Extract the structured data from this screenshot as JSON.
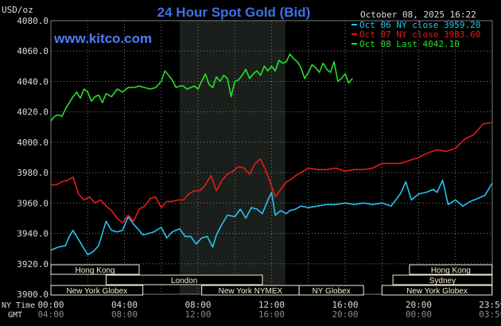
{
  "header": {
    "unit": "USD/oz",
    "title": "24 Hour Spot Gold (Bid)",
    "date": "October 08, 2025 16:22",
    "watermark": "www.kitco.com"
  },
  "colors": {
    "background": "#000000",
    "title": "#3f6fe8",
    "watermark": "#4f7df0",
    "grid": "#7a7a7a",
    "text": "#dcdcdc",
    "nymex_shade": "#1b1f1b",
    "session_fill": "#f2eed7",
    "series_oct06": "#22c4f0",
    "series_oct07": "#e41b1b",
    "series_oct08": "#27de2a"
  },
  "time_axis": {
    "ny_label": "NY Time",
    "gmt_label": "GMT",
    "ny_ticks": [
      "00:00",
      "04:00",
      "08:00",
      "12:00",
      "16:00",
      "20:00",
      "23:59"
    ],
    "gmt_ticks": [
      "04:00",
      "08:00",
      "12:00",
      "16:00",
      "20:00",
      "00:00",
      "03:59"
    ]
  },
  "sessions": [
    {
      "label": "Hong Kong",
      "start": -2,
      "end": 4.8,
      "row": 0
    },
    {
      "label": "London",
      "start": 3,
      "end": 11.5,
      "row": 1
    },
    {
      "label": "New York Globex",
      "start": -1,
      "end": 5,
      "row": 2
    },
    {
      "label": "New York NYMEX",
      "start": 8.2,
      "end": 13.5,
      "row": 2
    },
    {
      "label": "NY Globex",
      "start": 13.5,
      "end": 17,
      "row": 2
    },
    {
      "label": "Hong Kong",
      "start": 19.5,
      "end": 23.99,
      "row": 0
    },
    {
      "label": "Sydney",
      "start": 18.6,
      "end": 23.99,
      "row": 1
    },
    {
      "label": "New York Globex",
      "start": 18,
      "end": 23.99,
      "row": 2
    }
  ],
  "chart_data": {
    "type": "line",
    "title": "24 Hour Spot Gold (Bid)",
    "ylabel": "USD/oz",
    "xlabel": "NY Time",
    "xlim": [
      0,
      24
    ],
    "ylim": [
      3900,
      4080
    ],
    "yticks": [
      "3900.0",
      "3920.0",
      "3940.0",
      "3960.0",
      "3980.0",
      "4000.0",
      "4020.0",
      "4040.0",
      "4060.0",
      "4080.0"
    ],
    "grid": true,
    "legend_position": "top-right",
    "shaded_region": [
      7,
      12.75
    ],
    "series": [
      {
        "name": "Oct 06 NY close 3959.20",
        "x": [
          0,
          0.4,
          0.8,
          1.0,
          1.2,
          1.5,
          1.8,
          2.0,
          2.3,
          2.6,
          3.0,
          3.3,
          3.6,
          3.9,
          4.2,
          4.5,
          4.8,
          5.0,
          5.3,
          5.6,
          6.0,
          6.3,
          6.6,
          7.0,
          7.3,
          7.6,
          7.9,
          8.2,
          8.5,
          8.8,
          9.0,
          9.3,
          9.6,
          10.0,
          10.3,
          10.6,
          10.9,
          11.2,
          11.5,
          11.8,
          12.0,
          12.2,
          12.5,
          12.8,
          13.0,
          13.3,
          13.6,
          14.0,
          14.5,
          15.0,
          15.5,
          16.0,
          16.5,
          17.0,
          17.5,
          18.0,
          18.5,
          19.0,
          19.3,
          19.6,
          20.0,
          20.4,
          20.8,
          21.0,
          21.3,
          21.6,
          22.0,
          22.4,
          22.8,
          23.2,
          23.6,
          23.99
        ],
        "values": [
          3929,
          3931,
          3932,
          3938,
          3942,
          3936,
          3930,
          3926,
          3928,
          3932,
          3948,
          3942,
          3941,
          3942,
          3951,
          3946,
          3942,
          3939,
          3940,
          3941,
          3944,
          3937,
          3941,
          3943,
          3938,
          3938,
          3933,
          3937,
          3938,
          3931,
          3939,
          3946,
          3952,
          3951,
          3956,
          3950,
          3957,
          3956,
          3953,
          3962,
          3967,
          3952,
          3955,
          3953,
          3955,
          3956,
          3958,
          3957,
          3958,
          3959,
          3959,
          3960,
          3959,
          3960,
          3959,
          3960,
          3958,
          3966,
          3974,
          3962,
          3966,
          3967,
          3969,
          3967,
          3975,
          3959,
          3962,
          3958,
          3961,
          3963,
          3965,
          3973
        ]
      },
      {
        "name": "Oct 07 NY close 3983.60",
        "x": [
          0,
          0.3,
          0.6,
          0.9,
          1.2,
          1.5,
          1.8,
          2.1,
          2.4,
          2.7,
          3.0,
          3.3,
          3.6,
          3.9,
          4.2,
          4.5,
          4.8,
          5.1,
          5.4,
          5.7,
          6.0,
          6.3,
          6.6,
          6.9,
          7.2,
          7.5,
          7.8,
          8.1,
          8.4,
          8.7,
          9.0,
          9.3,
          9.6,
          9.9,
          10.2,
          10.5,
          10.8,
          11.1,
          11.4,
          11.7,
          12.0,
          12.2,
          12.5,
          12.8,
          13.0,
          13.3,
          13.6,
          14.0,
          14.5,
          15.0,
          15.5,
          16.0,
          16.5,
          17.0,
          17.5,
          18.0,
          18.5,
          19.0,
          19.5,
          20.0,
          20.5,
          21.0,
          21.5,
          22.0,
          22.5,
          23.0,
          23.5,
          23.99
        ],
        "values": [
          3972,
          3972,
          3974,
          3975,
          3977,
          3966,
          3962,
          3964,
          3960,
          3962,
          3958,
          3955,
          3950,
          3947,
          3952,
          3948,
          3956,
          3958,
          3963,
          3964,
          3957,
          3961,
          3961,
          3962,
          3962,
          3966,
          3968,
          3968,
          3972,
          3978,
          3968,
          3975,
          3979,
          3981,
          3984,
          3983,
          3979,
          3986,
          3989,
          3981,
          3971,
          3964,
          3969,
          3974,
          3975,
          3978,
          3980,
          3983,
          3982,
          3982,
          3983,
          3981,
          3982,
          3982,
          3983,
          3986,
          3986,
          3986,
          3988,
          3990,
          3993,
          3995,
          3994,
          3996,
          4002,
          4005,
          4012,
          4013
        ]
      },
      {
        "name": "Oct 08 Last 4042.10",
        "x": [
          0,
          0.2,
          0.4,
          0.6,
          0.8,
          1.0,
          1.2,
          1.4,
          1.6,
          1.8,
          2.0,
          2.2,
          2.4,
          2.6,
          2.8,
          3.0,
          3.3,
          3.6,
          3.9,
          4.2,
          4.5,
          4.8,
          5.1,
          5.4,
          5.7,
          6.0,
          6.2,
          6.4,
          6.6,
          6.8,
          7.0,
          7.2,
          7.4,
          7.6,
          7.8,
          8.0,
          8.2,
          8.4,
          8.6,
          8.8,
          9.0,
          9.2,
          9.4,
          9.6,
          9.8,
          10.0,
          10.2,
          10.4,
          10.6,
          10.8,
          11.0,
          11.2,
          11.4,
          11.6,
          11.8,
          12.0,
          12.2,
          12.4,
          12.6,
          12.8,
          13.0,
          13.2,
          13.4,
          13.6,
          13.8,
          14.0,
          14.2,
          14.4,
          14.6,
          14.8,
          15.0,
          15.2,
          15.4,
          15.6,
          15.8,
          16.0,
          16.2,
          16.4
        ],
        "values": [
          4014,
          4017,
          4018,
          4017,
          4022,
          4026,
          4030,
          4033,
          4029,
          4035,
          4033,
          4027,
          4030,
          4031,
          4026,
          4032,
          4030,
          4035,
          4033,
          4036,
          4036,
          4037,
          4036,
          4035,
          4036,
          4040,
          4047,
          4044,
          4041,
          4036,
          4037,
          4037,
          4035,
          4036,
          4037,
          4035,
          4040,
          4045,
          4038,
          4036,
          4043,
          4040,
          4044,
          4042,
          4030,
          4040,
          4041,
          4044,
          4048,
          4042,
          4045,
          4047,
          4044,
          4050,
          4047,
          4050,
          4047,
          4054,
          4052,
          4053,
          4058,
          4055,
          4053,
          4049,
          4042,
          4046,
          4051,
          4049,
          4046,
          4052,
          4048,
          4046,
          4053,
          4040,
          4042,
          4045,
          4039,
          4042
        ]
      }
    ]
  }
}
